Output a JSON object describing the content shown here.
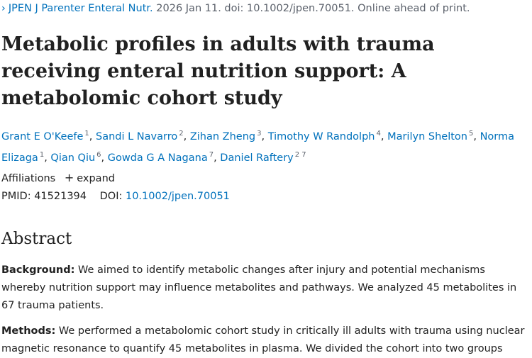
{
  "citation": {
    "journal": "JPEN J Parenter Enteral Nutr.",
    "details": "2026 Jan 11. doi: 10.1002/jpen.70051. Online ahead of print."
  },
  "title": "Metabolic profiles in adults with trauma receiving enteral nutrition support: A metabolomic cohort study",
  "authors": [
    {
      "name": "Grant E O'Keefe",
      "aff": "1"
    },
    {
      "name": "Sandi L Navarro",
      "aff": "2"
    },
    {
      "name": "Zihan Zheng",
      "aff": "3"
    },
    {
      "name": "Timothy W Randolph",
      "aff": "4"
    },
    {
      "name": "Marilyn Shelton",
      "aff": "5"
    },
    {
      "name": "Norma Elizaga",
      "aff": "1"
    },
    {
      "name": "Qian Qiu",
      "aff": "6"
    },
    {
      "name": "Gowda G A Nagana",
      "aff": "7"
    },
    {
      "name": "Daniel Raftery",
      "aff": "2 7"
    }
  ],
  "affiliations": {
    "label": "Affiliations",
    "expand": "expand"
  },
  "ids": {
    "pmid_label": "PMID:",
    "pmid": "41521394",
    "doi_label": "DOI:",
    "doi": "10.1002/jpen.70051"
  },
  "abstract": {
    "heading": "Abstract",
    "background_label": "Background:",
    "background_text": "We aimed to identify metabolic changes after injury and potential mechanisms whereby nutrition support may influence metabolites and pathways. We analyzed 45 metabolites in 67 trauma patients.",
    "methods_label": "Methods:",
    "methods_text": "We performed a metabolomic cohort study in critically ill adults with trauma using nuclear magnetic resonance to quantify 45 metabolites in plasma. We divided the cohort into two groups"
  }
}
